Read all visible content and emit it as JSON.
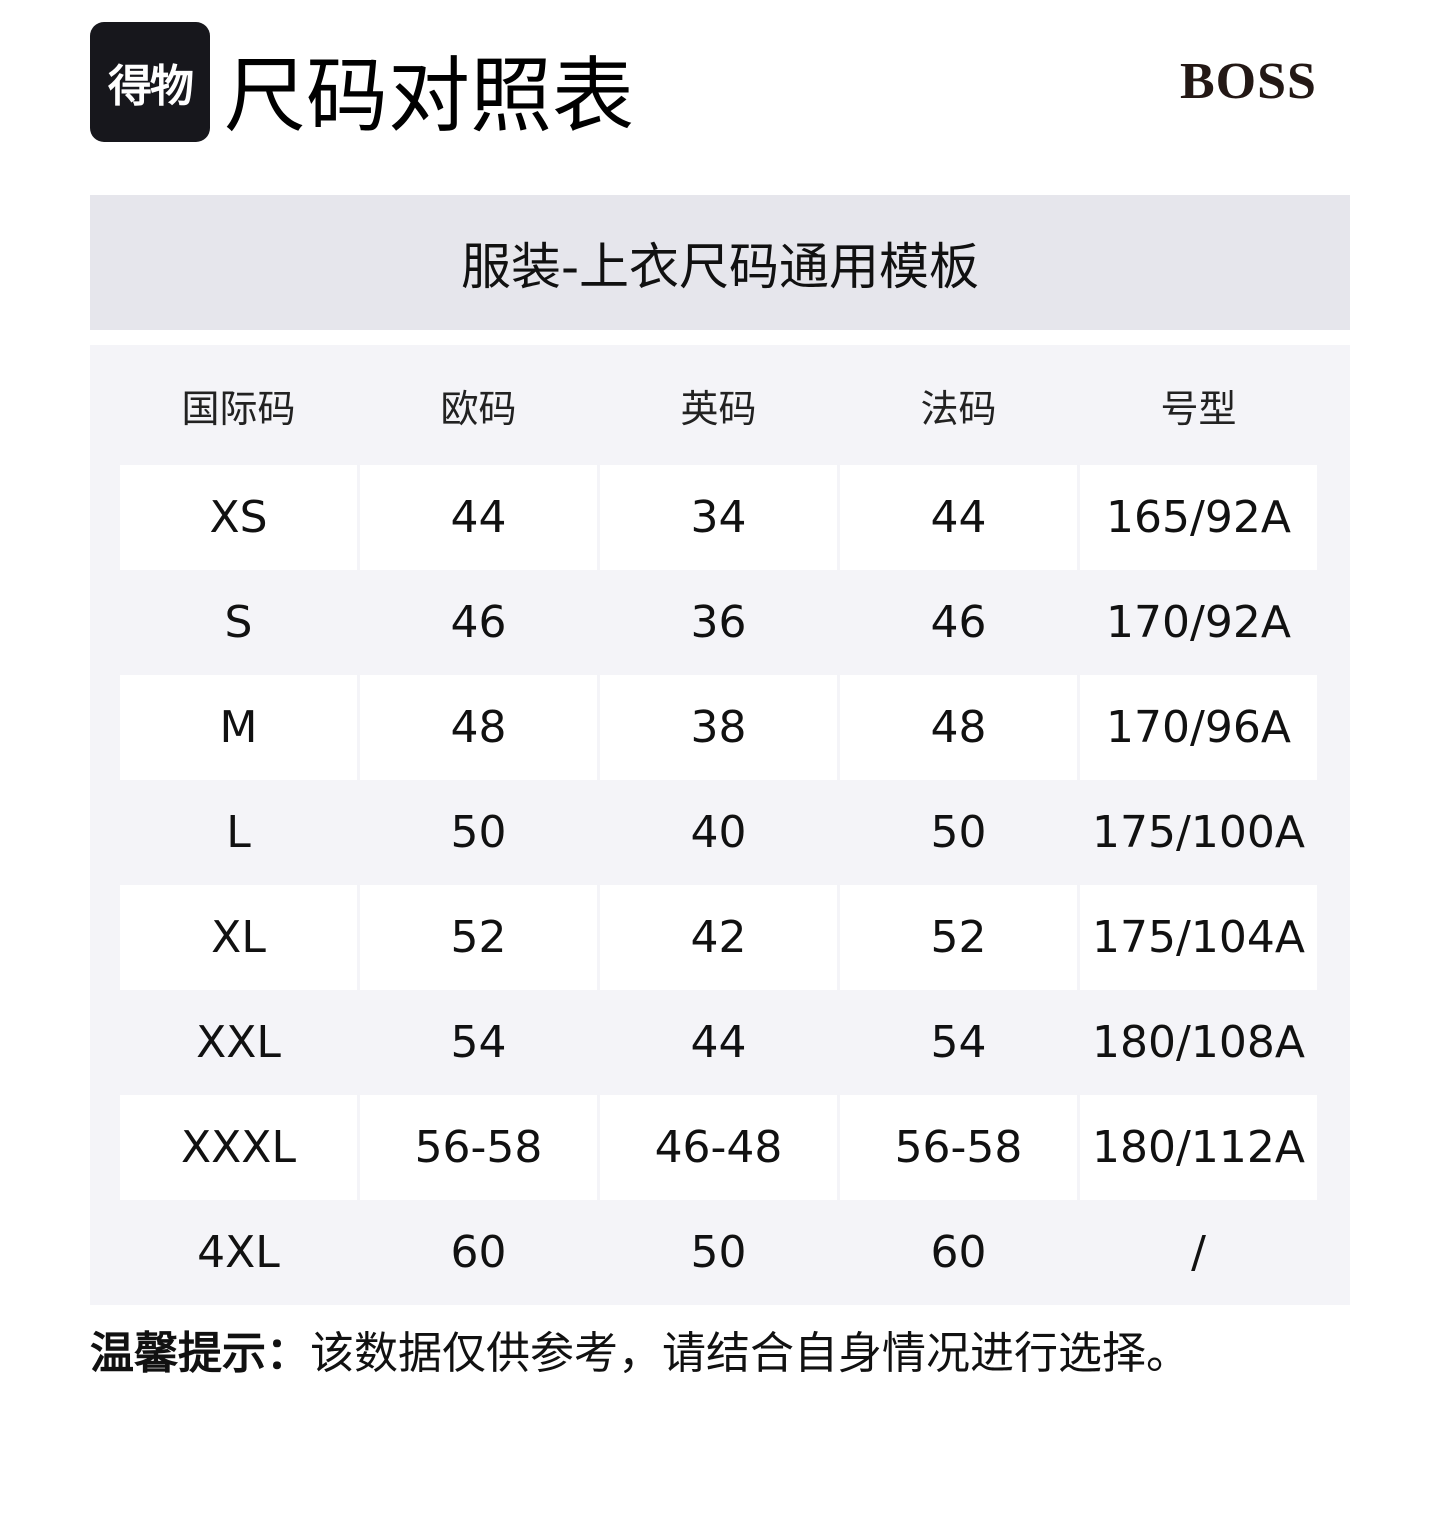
{
  "logo": {
    "text": "得物"
  },
  "title": "尺码对照表",
  "brand": "BOSS",
  "banner": "服装-上衣尺码通用模板",
  "table": {
    "headers": [
      "国际码",
      "欧码",
      "英码",
      "法码",
      "号型"
    ],
    "rows": [
      [
        "XS",
        "44",
        "34",
        "44",
        "165/92A"
      ],
      [
        "S",
        "46",
        "36",
        "46",
        "170/92A"
      ],
      [
        "M",
        "48",
        "38",
        "48",
        "170/96A"
      ],
      [
        "L",
        "50",
        "40",
        "50",
        "175/100A"
      ],
      [
        "XL",
        "52",
        "42",
        "52",
        "175/104A"
      ],
      [
        "XXL",
        "54",
        "44",
        "54",
        "180/108A"
      ],
      [
        "XXXL",
        "56-58",
        "46-48",
        "56-58",
        "180/112A"
      ],
      [
        "4XL",
        "60",
        "50",
        "60",
        "/"
      ]
    ]
  },
  "note": {
    "label": "温馨提示：",
    "text": "该数据仅供参考，请结合自身情况进行选择。"
  },
  "colors": {
    "banner_bg": "#e6e6ec",
    "table_bg": "#f4f4f8",
    "logo_bg": "#17171c"
  }
}
